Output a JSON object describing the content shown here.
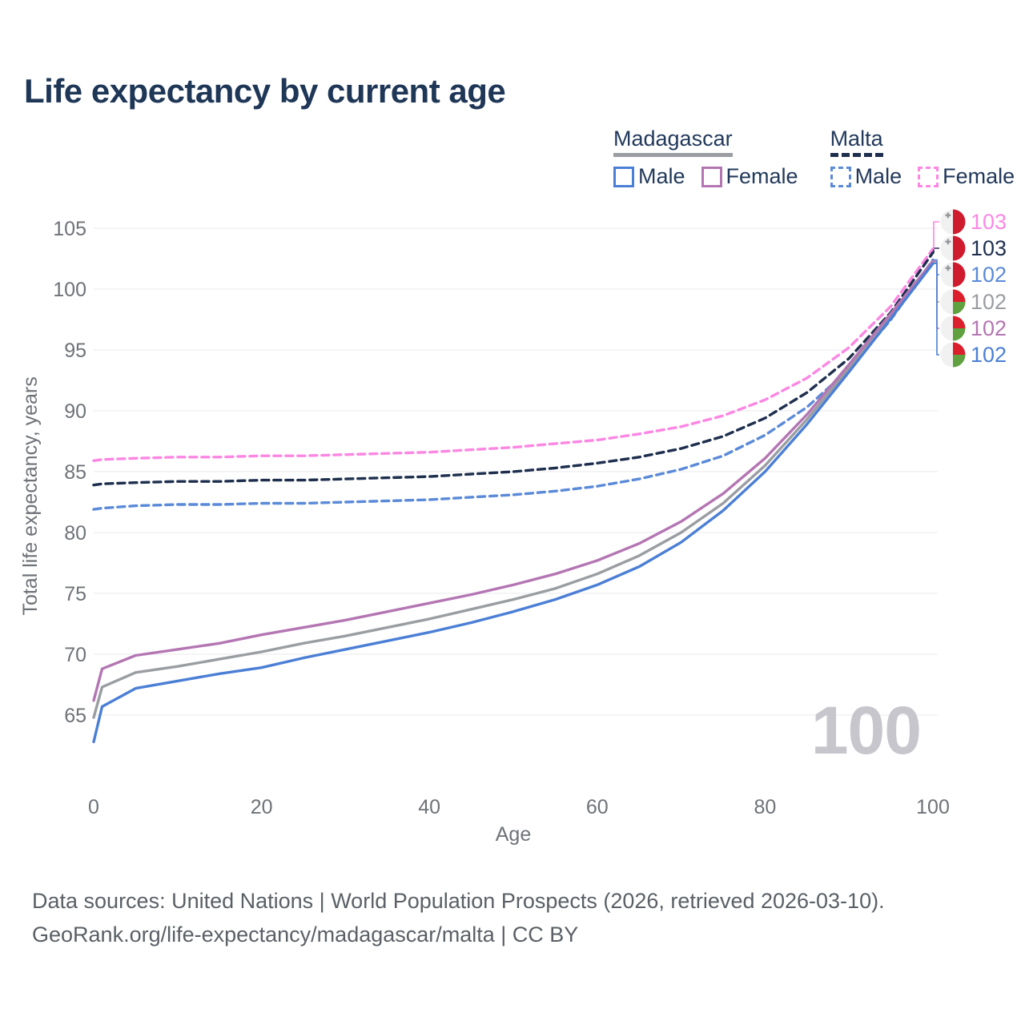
{
  "title": "Life expectancy by current age",
  "legend": {
    "groups": [
      {
        "name": "Madagascar",
        "line_style": "solid",
        "underline_color": "#9a9da1",
        "items": [
          {
            "label": "Male",
            "color": "#4b7fd5"
          },
          {
            "label": "Female",
            "color": "#b476b3"
          }
        ]
      },
      {
        "name": "Malta",
        "line_style": "dashed",
        "underline_color": "#1e2f4e",
        "items": [
          {
            "label": "Male",
            "color": "#5b8ad8"
          },
          {
            "label": "Female",
            "color": "#fb87e3"
          }
        ]
      }
    ]
  },
  "chart_data": {
    "type": "line",
    "title": "Life expectancy by current age",
    "xlabel": "Age",
    "ylabel": "Total life expectancy, years",
    "xlim": [
      0,
      100
    ],
    "ylim": [
      62,
      106
    ],
    "x_ticks": [
      0,
      20,
      40,
      60,
      80,
      100
    ],
    "y_ticks": [
      65,
      70,
      75,
      80,
      85,
      90,
      95,
      100,
      105
    ],
    "grid": "horizontal-only",
    "legend_position": "top-right",
    "ages": [
      0,
      1,
      5,
      10,
      15,
      20,
      25,
      30,
      35,
      40,
      45,
      50,
      55,
      60,
      65,
      70,
      75,
      80,
      85,
      90,
      95,
      100
    ],
    "series": [
      {
        "name": "Malta Female",
        "country": "Malta",
        "sex": "Female",
        "color": "#fb87e3",
        "dash": true,
        "values": [
          85.9,
          86.0,
          86.1,
          86.2,
          86.2,
          86.3,
          86.3,
          86.4,
          86.5,
          86.6,
          86.8,
          87.0,
          87.3,
          87.6,
          88.1,
          88.7,
          89.6,
          90.9,
          92.7,
          95.2,
          98.6,
          103.3
        ]
      },
      {
        "name": "Malta",
        "country": "Malta",
        "sex": "Both",
        "color": "#1e2f4e",
        "dash": true,
        "values": [
          83.9,
          84.0,
          84.1,
          84.2,
          84.2,
          84.3,
          84.3,
          84.4,
          84.5,
          84.6,
          84.8,
          85.0,
          85.3,
          85.7,
          86.2,
          86.9,
          87.9,
          89.4,
          91.5,
          94.3,
          98.1,
          103.0
        ]
      },
      {
        "name": "Malta Male",
        "country": "Malta",
        "sex": "Male",
        "color": "#5b8ad8",
        "dash": true,
        "values": [
          81.9,
          82.0,
          82.2,
          82.3,
          82.3,
          82.4,
          82.4,
          82.5,
          82.6,
          82.7,
          82.9,
          83.1,
          83.4,
          83.8,
          84.4,
          85.2,
          86.3,
          88.0,
          90.3,
          93.4,
          97.5,
          102.4
        ]
      },
      {
        "name": "Madagascar",
        "country": "Madagascar",
        "sex": "Both",
        "color": "#9a9da1",
        "dash": false,
        "values": [
          64.8,
          67.3,
          68.5,
          69.0,
          69.6,
          70.2,
          70.9,
          71.5,
          72.2,
          72.9,
          73.7,
          74.5,
          75.4,
          76.6,
          78.1,
          80.0,
          82.4,
          85.5,
          89.3,
          93.5,
          97.8,
          102.2
        ]
      },
      {
        "name": "Madagascar Female",
        "country": "Madagascar",
        "sex": "Female",
        "color": "#b476b3",
        "dash": false,
        "values": [
          66.2,
          68.8,
          69.9,
          70.4,
          70.9,
          71.6,
          72.2,
          72.8,
          73.5,
          74.2,
          74.9,
          75.7,
          76.6,
          77.7,
          79.1,
          80.9,
          83.2,
          86.1,
          89.7,
          93.8,
          98.0,
          102.3
        ]
      },
      {
        "name": "Madagascar Male",
        "country": "Madagascar",
        "sex": "Male",
        "color": "#4b7fd5",
        "dash": false,
        "values": [
          62.8,
          65.7,
          67.2,
          67.8,
          68.4,
          68.9,
          69.7,
          70.4,
          71.1,
          71.8,
          72.6,
          73.5,
          74.5,
          75.7,
          77.2,
          79.2,
          81.8,
          85.0,
          88.9,
          93.2,
          97.6,
          102.1
        ]
      }
    ],
    "end_labels": [
      {
        "label": "103",
        "flag": "malta",
        "series_index": 0,
        "color": "#fb87e3"
      },
      {
        "label": "103",
        "flag": "malta",
        "series_index": 1,
        "color": "#1e2f4e"
      },
      {
        "label": "102",
        "flag": "malta",
        "series_index": 2,
        "color": "#5b8ad8"
      },
      {
        "label": "102",
        "flag": "madagascar",
        "series_index": 3,
        "color": "#9a9da1"
      },
      {
        "label": "102",
        "flag": "madagascar",
        "series_index": 4,
        "color": "#b476b3"
      },
      {
        "label": "102",
        "flag": "madagascar",
        "series_index": 5,
        "color": "#4b7fd5"
      }
    ],
    "flag_colors": {
      "malta_red": "#cf1b2e",
      "malta_white": "#f1f1f2",
      "malta_cross": "#98999c",
      "madagascar_white": "#f1f1f2",
      "madagascar_red": "#db1f2d",
      "madagascar_green": "#5ea13e"
    }
  },
  "watermark": "100",
  "footer": {
    "line1": "Data sources: United Nations | World Population Prospects (2026, retrieved 2026-03-10).",
    "line2": "GeoRank.org/life-expectancy/madagascar/malta | CC BY"
  }
}
